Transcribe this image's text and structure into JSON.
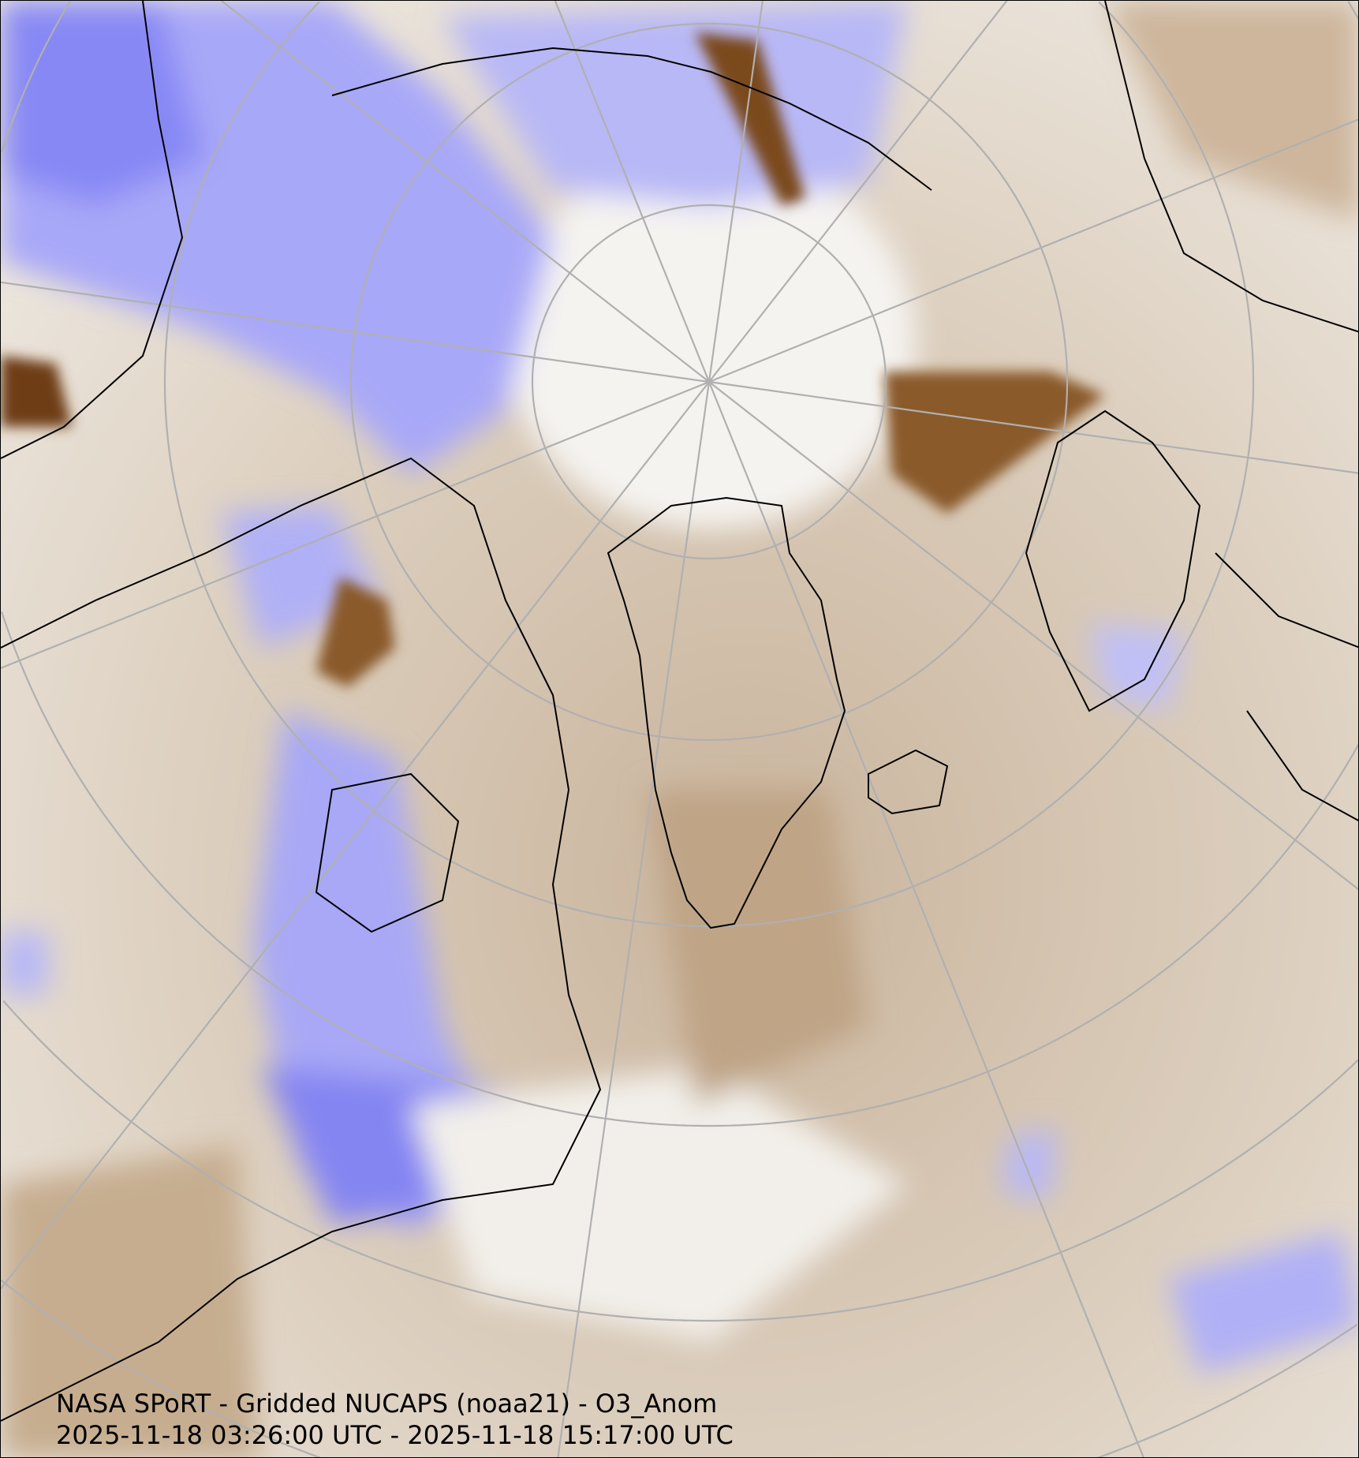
{
  "map": {
    "title": "NASA SPoRT - Gridded NUCAPS (noaa21) - O3_Anom",
    "time_range": "2025-11-18 03:26:00 UTC - 2025-11-18 15:17:00 UTC",
    "projection": "north-polar-stereographic",
    "variable": "O3_Anom",
    "colors": {
      "negative_anomaly": "#7b7bf5",
      "near_zero": "#f4f1ec",
      "positive_anomaly": "#7a4a1c",
      "graticule": "#b0b0b0",
      "coastlines": "#000000"
    }
  }
}
